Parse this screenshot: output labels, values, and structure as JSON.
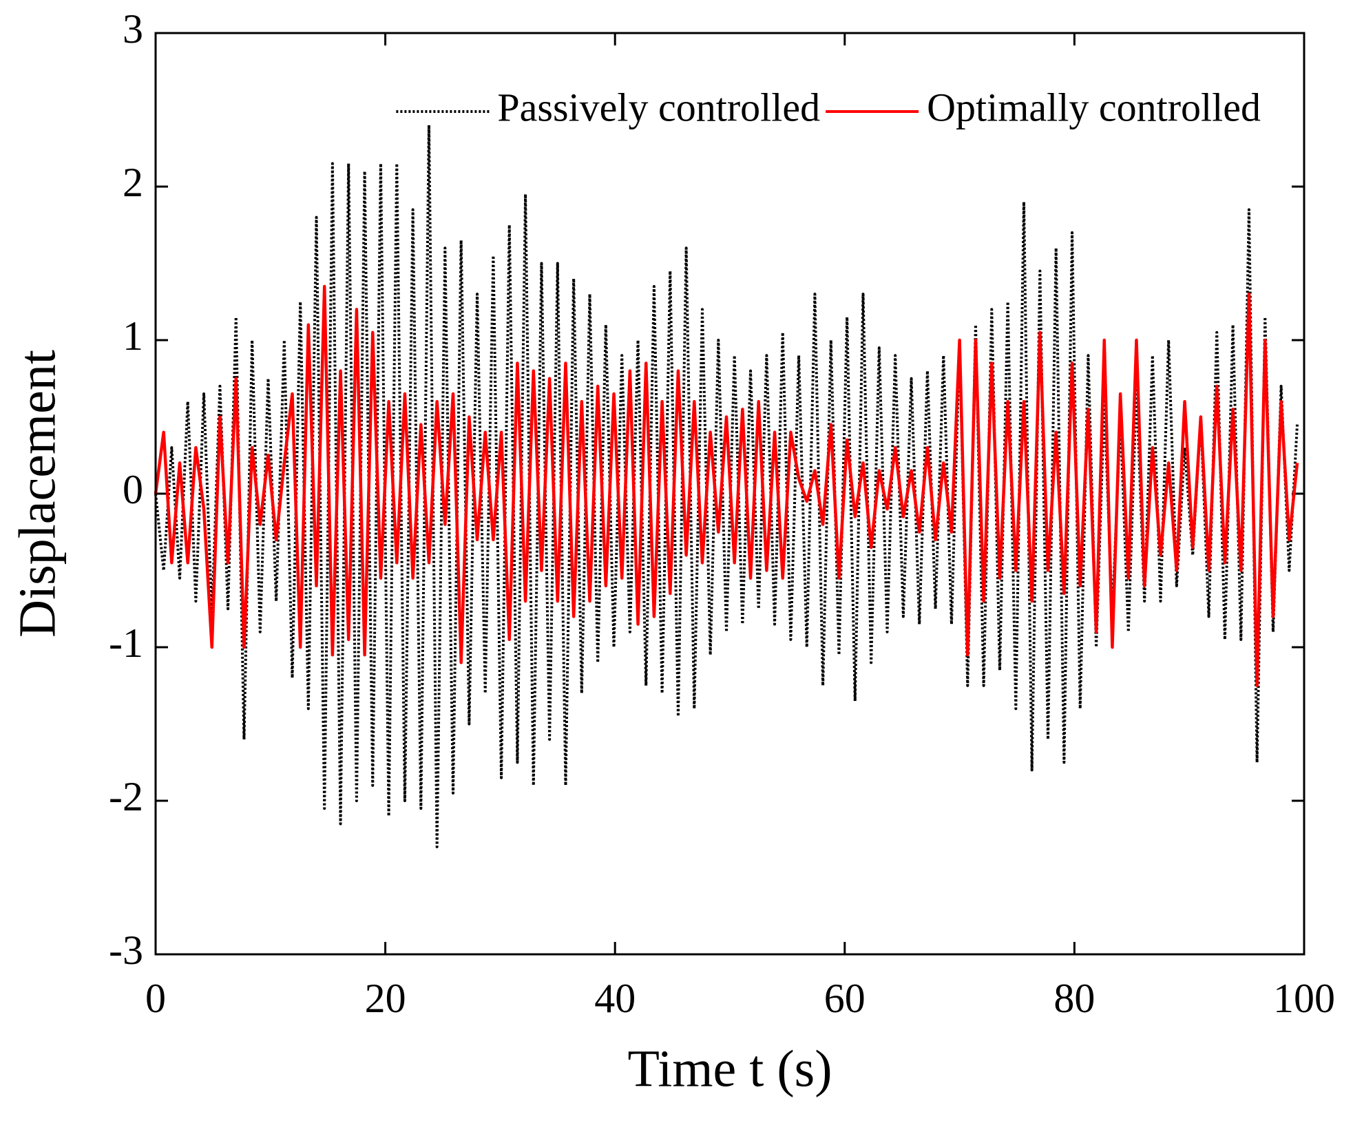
{
  "chart_data": {
    "type": "line",
    "xlabel": "Time t (s)",
    "ylabel": "Displacement",
    "xlim": [
      0,
      100
    ],
    "ylim": [
      -3,
      3
    ],
    "xticks": [
      0,
      20,
      40,
      60,
      80,
      100
    ],
    "yticks": [
      -3,
      -2,
      -1,
      0,
      1,
      2,
      3
    ],
    "legend": "upper right",
    "x": [
      0,
      0.7,
      1.4,
      2.1,
      2.8,
      3.5,
      4.2,
      4.9,
      5.6,
      6.3,
      7,
      7.7,
      8.4,
      9.1,
      9.8,
      10.5,
      11.2,
      11.9,
      12.6,
      13.3,
      14,
      14.7,
      15.4,
      16.1,
      16.8,
      17.5,
      18.2,
      18.9,
      19.6,
      20.3,
      21,
      21.7,
      22.4,
      23.1,
      23.8,
      24.5,
      25.2,
      25.9,
      26.6,
      27.3,
      28,
      28.7,
      29.4,
      30.1,
      30.8,
      31.5,
      32.2,
      32.9,
      33.6,
      34.3,
      35,
      35.7,
      36.4,
      37.1,
      37.8,
      38.5,
      39.2,
      39.9,
      40.6,
      41.3,
      42,
      42.7,
      43.4,
      44.1,
      44.8,
      45.5,
      46.2,
      46.9,
      47.6,
      48.3,
      49,
      49.7,
      50.4,
      51.1,
      51.8,
      52.5,
      53.2,
      53.9,
      54.6,
      55.3,
      56,
      56.7,
      57.4,
      58.1,
      58.8,
      59.5,
      60.2,
      60.9,
      61.6,
      62.3,
      63,
      63.7,
      64.4,
      65.1,
      65.8,
      66.5,
      67.2,
      67.9,
      68.6,
      69.3,
      70,
      70.7,
      71.4,
      72.1,
      72.8,
      73.5,
      74.2,
      74.9,
      75.6,
      76.3,
      77,
      77.7,
      78.4,
      79.1,
      79.8,
      80.5,
      81.2,
      81.9,
      82.6,
      83.3,
      84,
      84.7,
      85.4,
      86.1,
      86.8,
      87.5,
      88.2,
      88.9,
      89.6,
      90.3,
      91,
      91.7,
      92.4,
      93.1,
      93.8,
      94.5,
      95.2,
      95.9,
      96.6,
      97.3,
      98,
      98.7,
      99.4
    ],
    "series": [
      {
        "name": "Passively controlled",
        "color": "#000000",
        "style": "dotted",
        "values": [
          0,
          -0.5,
          0.3,
          -0.55,
          0.6,
          -0.7,
          0.65,
          -0.8,
          0.7,
          -0.75,
          1.15,
          -1.6,
          1.0,
          -0.9,
          0.75,
          -0.7,
          1.0,
          -1.2,
          1.25,
          -1.4,
          1.8,
          -2.05,
          2.15,
          -2.15,
          2.15,
          -2.0,
          2.1,
          -1.9,
          2.15,
          -2.1,
          2.15,
          -2.0,
          1.85,
          -2.05,
          2.4,
          -2.3,
          1.6,
          -1.95,
          1.65,
          -1.5,
          1.3,
          -1.3,
          1.55,
          -1.85,
          1.75,
          -1.75,
          1.95,
          -1.9,
          1.5,
          -1.6,
          1.5,
          -1.9,
          1.4,
          -1.3,
          1.3,
          -1.1,
          1.1,
          -1.0,
          0.9,
          -0.9,
          1.0,
          -1.25,
          1.35,
          -1.3,
          1.45,
          -1.45,
          1.6,
          -1.4,
          1.2,
          -1.05,
          1.0,
          -0.9,
          0.9,
          -0.85,
          0.8,
          -0.75,
          0.9,
          -0.85,
          1.05,
          -0.95,
          0.9,
          -1.0,
          1.3,
          -1.25,
          1.0,
          -1.05,
          1.15,
          -1.35,
          1.3,
          -1.1,
          0.95,
          -0.9,
          0.9,
          -0.8,
          0.75,
          -0.85,
          0.8,
          -0.75,
          0.9,
          -0.85,
          1.0,
          -1.25,
          1.1,
          -1.25,
          1.2,
          -1.15,
          1.25,
          -1.4,
          1.9,
          -1.8,
          1.45,
          -1.6,
          1.6,
          -1.75,
          1.7,
          -1.4,
          0.9,
          -1.0,
          0.6,
          -0.8,
          0.5,
          -0.9,
          0.7,
          -0.7,
          0.9,
          -0.7,
          1.0,
          -0.6,
          0.3,
          -0.4,
          0.5,
          -0.8,
          1.05,
          -0.95,
          1.1,
          -0.95,
          1.85,
          -1.75,
          1.15,
          -0.9,
          0.7,
          -0.5,
          0.45
        ]
      },
      {
        "name": "Optimally controlled",
        "color": "#ff0000",
        "style": "solid",
        "values": [
          0,
          0.4,
          -0.45,
          0.2,
          -0.45,
          0.3,
          -0.1,
          -1.0,
          0.5,
          -0.45,
          0.75,
          -1.0,
          0.3,
          -0.2,
          0.25,
          -0.3,
          0.2,
          0.65,
          -1.0,
          1.1,
          -0.6,
          1.35,
          -1.05,
          0.8,
          -0.95,
          1.2,
          -1.05,
          1.05,
          -0.55,
          0.6,
          -0.45,
          0.65,
          -0.55,
          0.45,
          -0.45,
          0.6,
          -0.2,
          0.65,
          -1.1,
          0.5,
          -0.3,
          0.4,
          -0.3,
          0.4,
          -0.95,
          0.85,
          -0.7,
          0.8,
          -0.5,
          0.75,
          -0.7,
          0.85,
          -0.8,
          0.6,
          -0.7,
          0.7,
          -0.6,
          0.65,
          -0.55,
          0.8,
          -0.85,
          0.85,
          -0.8,
          0.6,
          -0.65,
          0.8,
          -0.4,
          0.6,
          -0.45,
          0.4,
          -0.25,
          0.5,
          -0.45,
          0.55,
          -0.55,
          0.6,
          -0.5,
          0.4,
          -0.55,
          0.4,
          0.1,
          -0.05,
          0.15,
          -0.2,
          0.45,
          -0.55,
          0.35,
          -0.15,
          0.2,
          -0.35,
          0.15,
          -0.1,
          0.3,
          -0.15,
          0.15,
          -0.25,
          0.3,
          -0.3,
          0.2,
          -0.25,
          1.0,
          -1.05,
          1.0,
          -0.7,
          0.85,
          -0.55,
          0.6,
          -0.5,
          0.6,
          -0.7,
          1.05,
          -0.5,
          0.4,
          -0.65,
          0.85,
          -0.6,
          0.55,
          -0.9,
          1.0,
          -1.0,
          0.65,
          -0.55,
          1.0,
          -0.6,
          0.3,
          -0.4,
          0.2,
          -0.5,
          0.6,
          -0.35,
          0.5,
          -0.5,
          0.7,
          -0.45,
          0.55,
          -0.5,
          1.3,
          -1.25,
          1.0,
          -0.8,
          0.6,
          -0.3,
          0.2
        ]
      }
    ]
  }
}
